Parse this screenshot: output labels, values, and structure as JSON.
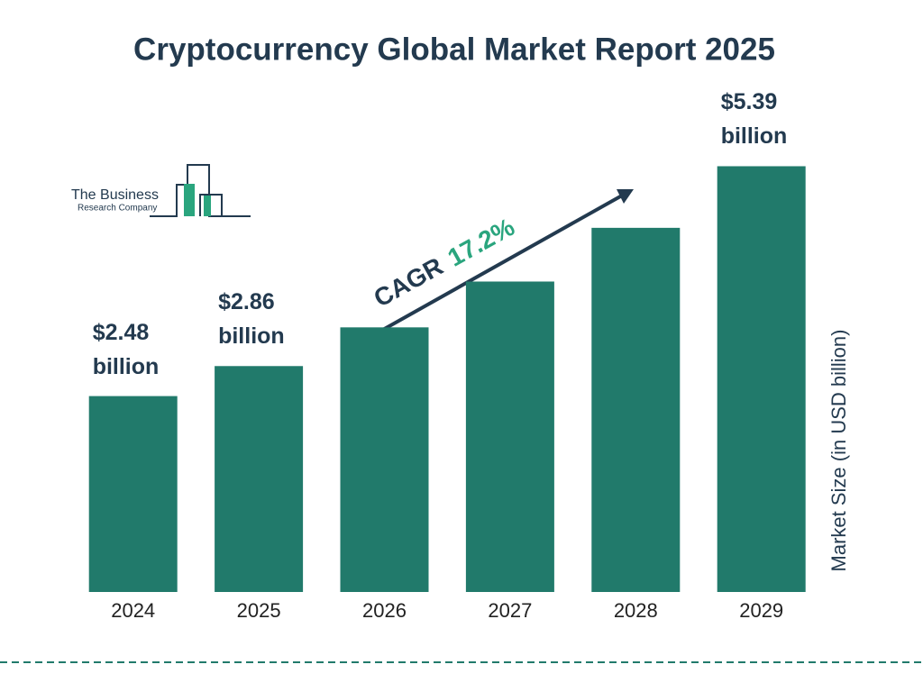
{
  "chart_data": {
    "type": "bar",
    "title": "Cryptocurrency Global Market Report 2025",
    "categories": [
      "2024",
      "2025",
      "2026",
      "2027",
      "2028",
      "2029"
    ],
    "values": [
      2.48,
      2.86,
      3.35,
      3.93,
      4.61,
      5.39
    ],
    "value_labels": [
      "$2.48 billion",
      "$2.86 billion",
      null,
      null,
      null,
      "$5.39 billion"
    ],
    "color": "#217a6b",
    "ylim": [
      0,
      6
    ],
    "y_label": "Market Size (in USD billion)",
    "cagr_label": "CAGR",
    "cagr": "17.2%",
    "logo": {
      "line1": "The Business",
      "line2": "Research Company"
    }
  }
}
